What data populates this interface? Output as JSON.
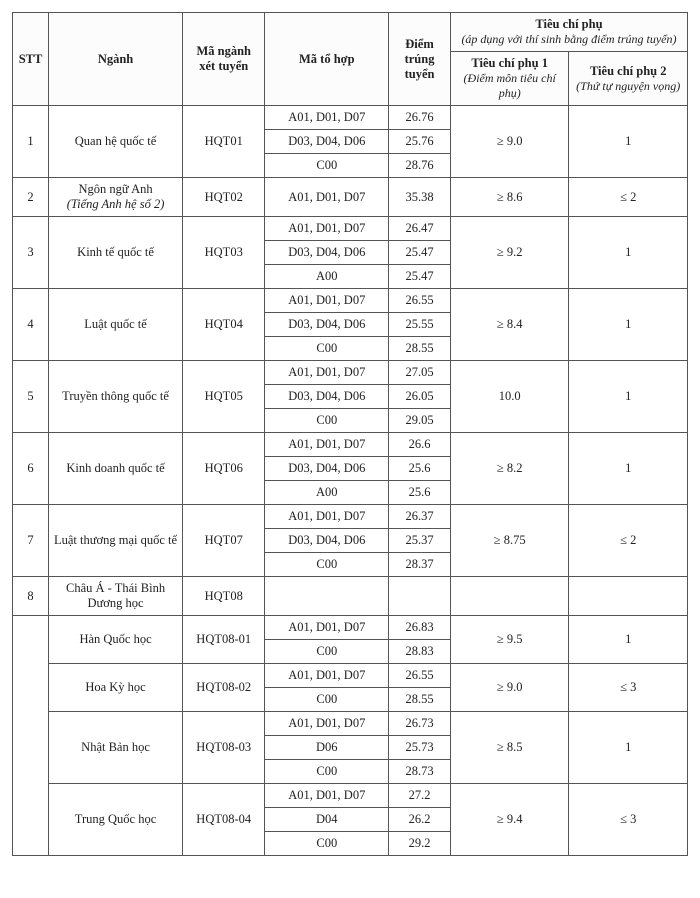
{
  "header": {
    "stt": "STT",
    "nganh": "Ngành",
    "ma_nganh": "Mã ngành xét tuyển",
    "ma_tohop": "Mã tổ hợp",
    "diem": "Điểm trúng tuyển",
    "phu_group": "Tiêu chí phụ",
    "phu_group_note": "(áp dụng với thí sinh bằng điểm trúng tuyển)",
    "phu1": "Tiêu chí phụ 1",
    "phu1_note": "(Điểm môn tiêu chí phụ)",
    "phu2": "Tiêu chí phụ 2",
    "phu2_note": "(Thứ tự nguyện vọng)"
  },
  "col_widths": {
    "stt": 35,
    "nganh": 130,
    "ma": 80,
    "tohop": 120,
    "diem": 60,
    "phu1": 115,
    "phu2": 115
  },
  "rows": [
    {
      "stt": "1",
      "nganh": "Quan hệ quốc tế",
      "ma": "HQT01",
      "sub": [
        {
          "tohop": "A01, D01, D07",
          "diem": "26.76"
        },
        {
          "tohop": "D03, D04, D06",
          "diem": "25.76"
        },
        {
          "tohop": "C00",
          "diem": "28.76"
        }
      ],
      "phu1": "≥ 9.0",
      "phu2": "1"
    },
    {
      "stt": "2",
      "nganh": "Ngôn ngữ Anh",
      "nganh_note": "(Tiếng Anh hệ số 2)",
      "ma": "HQT02",
      "sub": [
        {
          "tohop": "A01, D01, D07",
          "diem": "35.38"
        }
      ],
      "phu1": "≥ 8.6",
      "phu2": "≤ 2"
    },
    {
      "stt": "3",
      "nganh": "Kinh tế quốc tế",
      "ma": "HQT03",
      "sub": [
        {
          "tohop": "A01, D01, D07",
          "diem": "26.47"
        },
        {
          "tohop": "D03, D04, D06",
          "diem": "25.47"
        },
        {
          "tohop": "A00",
          "diem": "25.47"
        }
      ],
      "phu1": "≥ 9.2",
      "phu2": "1"
    },
    {
      "stt": "4",
      "nganh": "Luật quốc tế",
      "ma": "HQT04",
      "sub": [
        {
          "tohop": "A01, D01, D07",
          "diem": "26.55"
        },
        {
          "tohop": "D03, D04, D06",
          "diem": "25.55"
        },
        {
          "tohop": "C00",
          "diem": "28.55"
        }
      ],
      "phu1": "≥ 8.4",
      "phu2": "1"
    },
    {
      "stt": "5",
      "nganh": "Truyền thông quốc tế",
      "ma": "HQT05",
      "sub": [
        {
          "tohop": "A01, D01, D07",
          "diem": "27.05"
        },
        {
          "tohop": "D03, D04, D06",
          "diem": "26.05"
        },
        {
          "tohop": "C00",
          "diem": "29.05"
        }
      ],
      "phu1": "10.0",
      "phu2": "1"
    },
    {
      "stt": "6",
      "nganh": "Kinh doanh quốc tế",
      "ma": "HQT06",
      "sub": [
        {
          "tohop": "A01, D01, D07",
          "diem": "26.6"
        },
        {
          "tohop": "D03, D04, D06",
          "diem": "25.6"
        },
        {
          "tohop": "A00",
          "diem": "25.6"
        }
      ],
      "phu1": "≥ 8.2",
      "phu2": "1"
    }
  ],
  "rows2": [
    {
      "stt": "7",
      "nganh": "Luật thương mại quốc tế",
      "ma": "HQT07",
      "sub": [
        {
          "tohop": "A01, D01, D07",
          "diem": "26.37"
        },
        {
          "tohop": "D03, D04, D06",
          "diem": "25.37"
        },
        {
          "tohop": "C00",
          "diem": "28.37"
        }
      ],
      "phu1": "≥ 8.75",
      "phu2": "≤ 2"
    },
    {
      "stt": "8",
      "nganh": "Châu Á - Thái Bình Dương học",
      "ma": "HQT08",
      "sub": [
        {
          "tohop": "",
          "diem": ""
        }
      ],
      "phu1": "",
      "phu2": ""
    }
  ],
  "sub_rows": [
    {
      "nganh": "Hàn Quốc học",
      "ma": "HQT08-01",
      "sub": [
        {
          "tohop": "A01, D01, D07",
          "diem": "26.83"
        },
        {
          "tohop": "C00",
          "diem": "28.83"
        }
      ],
      "phu1": "≥ 9.5",
      "phu2": "1"
    },
    {
      "nganh": "Hoa Kỳ học",
      "ma": "HQT08-02",
      "sub": [
        {
          "tohop": "A01, D01, D07",
          "diem": "26.55"
        },
        {
          "tohop": "C00",
          "diem": "28.55"
        }
      ],
      "phu1": "≥ 9.0",
      "phu2": "≤ 3"
    },
    {
      "nganh": "Nhật Bản học",
      "ma": "HQT08-03",
      "sub": [
        {
          "tohop": "A01, D01, D07",
          "diem": "26.73"
        },
        {
          "tohop": "D06",
          "diem": "25.73"
        },
        {
          "tohop": "C00",
          "diem": "28.73"
        }
      ],
      "phu1": "≥ 8.5",
      "phu2": "1"
    },
    {
      "nganh": "Trung Quốc học",
      "ma": "HQT08-04",
      "sub": [
        {
          "tohop": "A01, D01, D07",
          "diem": "27.2"
        },
        {
          "tohop": "D04",
          "diem": "26.2"
        },
        {
          "tohop": "C00",
          "diem": "29.2"
        }
      ],
      "phu1": "≥ 9.4",
      "phu2": "≤ 3"
    }
  ]
}
